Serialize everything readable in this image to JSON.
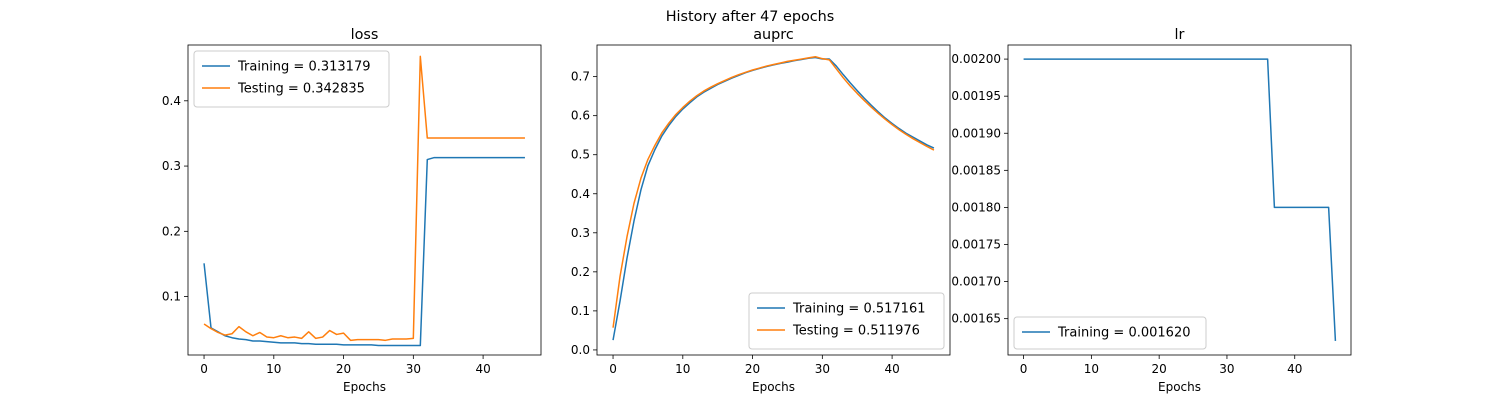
{
  "figure": {
    "suptitle": "History after 47 epochs"
  },
  "colors": {
    "training": "#1f77b4",
    "testing": "#ff7f0e"
  },
  "chart_data": [
    {
      "type": "line",
      "title": "loss",
      "xlabel": "Epochs",
      "ylabel": "",
      "xlim": [
        -2.3,
        48.3
      ],
      "ylim": [
        0.0105,
        0.4855
      ],
      "xticks": [
        0,
        10,
        20,
        30,
        40
      ],
      "yticks": [
        0.1,
        0.2,
        0.3,
        0.4
      ],
      "ytick_labels": [
        "0.1",
        "0.2",
        "0.3",
        "0.4"
      ],
      "legend_position": "top-left",
      "series": [
        {
          "name": "Training = 0.313179",
          "color": "#1f77b4",
          "x": [
            0,
            1,
            2,
            3,
            4,
            5,
            6,
            7,
            8,
            9,
            10,
            11,
            12,
            13,
            14,
            15,
            16,
            17,
            18,
            19,
            20,
            21,
            22,
            23,
            24,
            25,
            26,
            27,
            28,
            29,
            30,
            31,
            32,
            33,
            34,
            35,
            36,
            37,
            38,
            39,
            40,
            41,
            42,
            43,
            44,
            45,
            46
          ],
          "y": [
            0.151,
            0.052,
            0.046,
            0.04,
            0.037,
            0.035,
            0.034,
            0.032,
            0.032,
            0.031,
            0.03,
            0.029,
            0.029,
            0.029,
            0.028,
            0.028,
            0.027,
            0.027,
            0.027,
            0.027,
            0.026,
            0.026,
            0.026,
            0.026,
            0.026,
            0.025,
            0.025,
            0.025,
            0.025,
            0.025,
            0.025,
            0.025,
            0.31,
            0.313,
            0.313,
            0.313,
            0.313,
            0.313,
            0.313,
            0.313,
            0.313,
            0.313,
            0.313,
            0.313,
            0.313,
            0.313,
            0.313
          ]
        },
        {
          "name": "Testing = 0.342835",
          "color": "#ff7f0e",
          "x": [
            0,
            1,
            2,
            3,
            4,
            5,
            6,
            7,
            8,
            9,
            10,
            11,
            12,
            13,
            14,
            15,
            16,
            17,
            18,
            19,
            20,
            21,
            22,
            23,
            24,
            25,
            26,
            27,
            28,
            29,
            30,
            31,
            32,
            33,
            34,
            35,
            36,
            37,
            38,
            39,
            40,
            41,
            42,
            43,
            44,
            45,
            46
          ],
          "y": [
            0.058,
            0.051,
            0.045,
            0.041,
            0.043,
            0.054,
            0.046,
            0.04,
            0.045,
            0.038,
            0.037,
            0.04,
            0.037,
            0.038,
            0.036,
            0.046,
            0.036,
            0.038,
            0.048,
            0.042,
            0.044,
            0.033,
            0.034,
            0.034,
            0.034,
            0.034,
            0.033,
            0.035,
            0.035,
            0.035,
            0.036,
            0.468,
            0.343,
            0.343,
            0.343,
            0.343,
            0.343,
            0.343,
            0.343,
            0.343,
            0.343,
            0.343,
            0.343,
            0.343,
            0.343,
            0.343,
            0.343
          ]
        }
      ]
    },
    {
      "type": "line",
      "title": "auprc",
      "xlabel": "Epochs",
      "ylabel": "",
      "xlim": [
        -2.3,
        48.3
      ],
      "ylim": [
        -0.013,
        0.781
      ],
      "xticks": [
        0,
        10,
        20,
        30,
        40
      ],
      "yticks": [
        0.0,
        0.1,
        0.2,
        0.3,
        0.4,
        0.5,
        0.6,
        0.7
      ],
      "ytick_labels": [
        "0.0",
        "0.1",
        "0.2",
        "0.3",
        "0.4",
        "0.5",
        "0.6",
        "0.7"
      ],
      "legend_position": "lower-right",
      "series": [
        {
          "name": "Training = 0.517161",
          "color": "#1f77b4",
          "x": [
            0,
            1,
            2,
            3,
            4,
            5,
            6,
            7,
            8,
            9,
            10,
            11,
            12,
            13,
            14,
            15,
            16,
            17,
            18,
            19,
            20,
            21,
            22,
            23,
            24,
            25,
            26,
            27,
            28,
            29,
            30,
            31,
            32,
            33,
            34,
            35,
            36,
            37,
            38,
            39,
            40,
            41,
            42,
            43,
            44,
            45,
            46
          ],
          "y": [
            0.025,
            0.125,
            0.235,
            0.33,
            0.41,
            0.472,
            0.513,
            0.548,
            0.575,
            0.598,
            0.617,
            0.633,
            0.648,
            0.66,
            0.67,
            0.68,
            0.688,
            0.696,
            0.703,
            0.71,
            0.716,
            0.721,
            0.726,
            0.73,
            0.734,
            0.737,
            0.741,
            0.744,
            0.747,
            0.749,
            0.745,
            0.745,
            0.727,
            0.705,
            0.684,
            0.664,
            0.645,
            0.627,
            0.61,
            0.594,
            0.58,
            0.567,
            0.555,
            0.545,
            0.535,
            0.525,
            0.517
          ]
        },
        {
          "name": "Testing = 0.511976",
          "color": "#ff7f0e",
          "x": [
            0,
            1,
            2,
            3,
            4,
            5,
            6,
            7,
            8,
            9,
            10,
            11,
            12,
            13,
            14,
            15,
            16,
            17,
            18,
            19,
            20,
            21,
            22,
            23,
            24,
            25,
            26,
            27,
            28,
            29,
            30,
            31,
            32,
            33,
            34,
            35,
            36,
            37,
            38,
            39,
            40,
            41,
            42,
            43,
            44,
            45,
            46
          ],
          "y": [
            0.057,
            0.188,
            0.29,
            0.375,
            0.44,
            0.488,
            0.524,
            0.556,
            0.581,
            0.603,
            0.621,
            0.637,
            0.651,
            0.663,
            0.673,
            0.682,
            0.69,
            0.698,
            0.705,
            0.711,
            0.717,
            0.722,
            0.727,
            0.731,
            0.735,
            0.739,
            0.742,
            0.745,
            0.748,
            0.751,
            0.746,
            0.743,
            0.72,
            0.697,
            0.676,
            0.657,
            0.639,
            0.622,
            0.606,
            0.591,
            0.577,
            0.564,
            0.552,
            0.541,
            0.531,
            0.521,
            0.512
          ]
        }
      ]
    },
    {
      "type": "line",
      "title": "lr",
      "xlabel": "Epochs",
      "ylabel": "",
      "xlim": [
        -2.3,
        48.3
      ],
      "ylim": [
        0.001601,
        0.002019
      ],
      "xticks": [
        0,
        10,
        20,
        30,
        40
      ],
      "yticks": [
        0.00165,
        0.0017,
        0.00175,
        0.0018,
        0.00185,
        0.0019,
        0.00195,
        0.002
      ],
      "ytick_labels": [
        "0.00165",
        "0.00170",
        "0.00175",
        "0.00180",
        "0.00185",
        "0.00190",
        "0.00195",
        "0.00200"
      ],
      "legend_position": "lower-left",
      "series": [
        {
          "name": "Training = 0.001620",
          "color": "#1f77b4",
          "x": [
            0,
            1,
            2,
            3,
            4,
            5,
            6,
            7,
            8,
            9,
            10,
            11,
            12,
            13,
            14,
            15,
            16,
            17,
            18,
            19,
            20,
            21,
            22,
            23,
            24,
            25,
            26,
            27,
            28,
            29,
            30,
            31,
            32,
            33,
            34,
            35,
            36,
            37,
            38,
            39,
            40,
            41,
            42,
            43,
            44,
            45,
            46
          ],
          "y": [
            0.002,
            0.002,
            0.002,
            0.002,
            0.002,
            0.002,
            0.002,
            0.002,
            0.002,
            0.002,
            0.002,
            0.002,
            0.002,
            0.002,
            0.002,
            0.002,
            0.002,
            0.002,
            0.002,
            0.002,
            0.002,
            0.002,
            0.002,
            0.002,
            0.002,
            0.002,
            0.002,
            0.002,
            0.002,
            0.002,
            0.002,
            0.002,
            0.002,
            0.002,
            0.002,
            0.002,
            0.002,
            0.0018,
            0.0018,
            0.0018,
            0.0018,
            0.0018,
            0.0018,
            0.0018,
            0.0018,
            0.0018,
            0.00162
          ]
        }
      ]
    }
  ]
}
